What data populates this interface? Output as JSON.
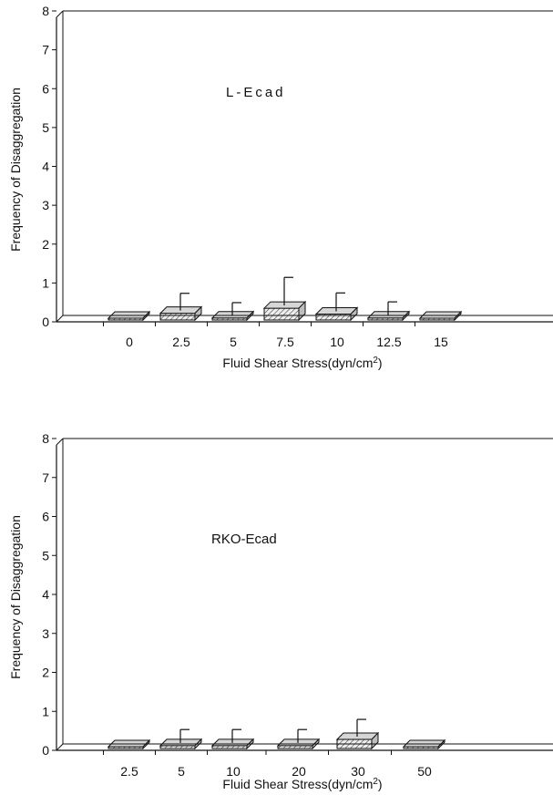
{
  "chart_data": [
    {
      "type": "bar",
      "panel_label": "L-Ecad",
      "xlabel": "Fluid Shear Stress(dyn/cm",
      "xlabel_sup": "2",
      "xlabel_close": ")",
      "ylabel": "Frequency of Disaggregation",
      "ylim": [
        0,
        8
      ],
      "yticks": [
        "0",
        "1",
        "2",
        "3",
        "4",
        "5",
        "6",
        "7",
        "8"
      ],
      "categories": [
        "0",
        "2.5",
        "5",
        "7.5",
        "10",
        "12.5",
        "15"
      ],
      "values": [
        0.0,
        0.22,
        0.1,
        0.35,
        0.2,
        0.1,
        0.0
      ],
      "errors": [
        0.0,
        0.42,
        0.3,
        0.7,
        0.45,
        0.32,
        0.0
      ],
      "bar_pattern": "hatched",
      "grid": false
    },
    {
      "type": "bar",
      "panel_label": "RKO-Ecad",
      "xlabel": "Fluid Shear Stress(dyn/cm",
      "xlabel_sup": "2",
      "xlabel_close": ")",
      "ylabel": "Frequency of Disaggregation",
      "ylim": [
        0,
        8
      ],
      "yticks": [
        "0",
        "1",
        "2",
        "3",
        "4",
        "5",
        "6",
        "7",
        "8"
      ],
      "categories": [
        "2.5",
        "5",
        "10",
        "20",
        "30",
        "50"
      ],
      "values": [
        0.0,
        0.12,
        0.12,
        0.12,
        0.28,
        0.0
      ],
      "errors": [
        0.0,
        0.32,
        0.32,
        0.32,
        0.42,
        0.0
      ],
      "bar_pattern": "hatched",
      "grid": false
    }
  ],
  "colors": {
    "ink": "#111111",
    "bar_fill": "#e8e8e8",
    "bar_side": "#bdbdbd"
  }
}
